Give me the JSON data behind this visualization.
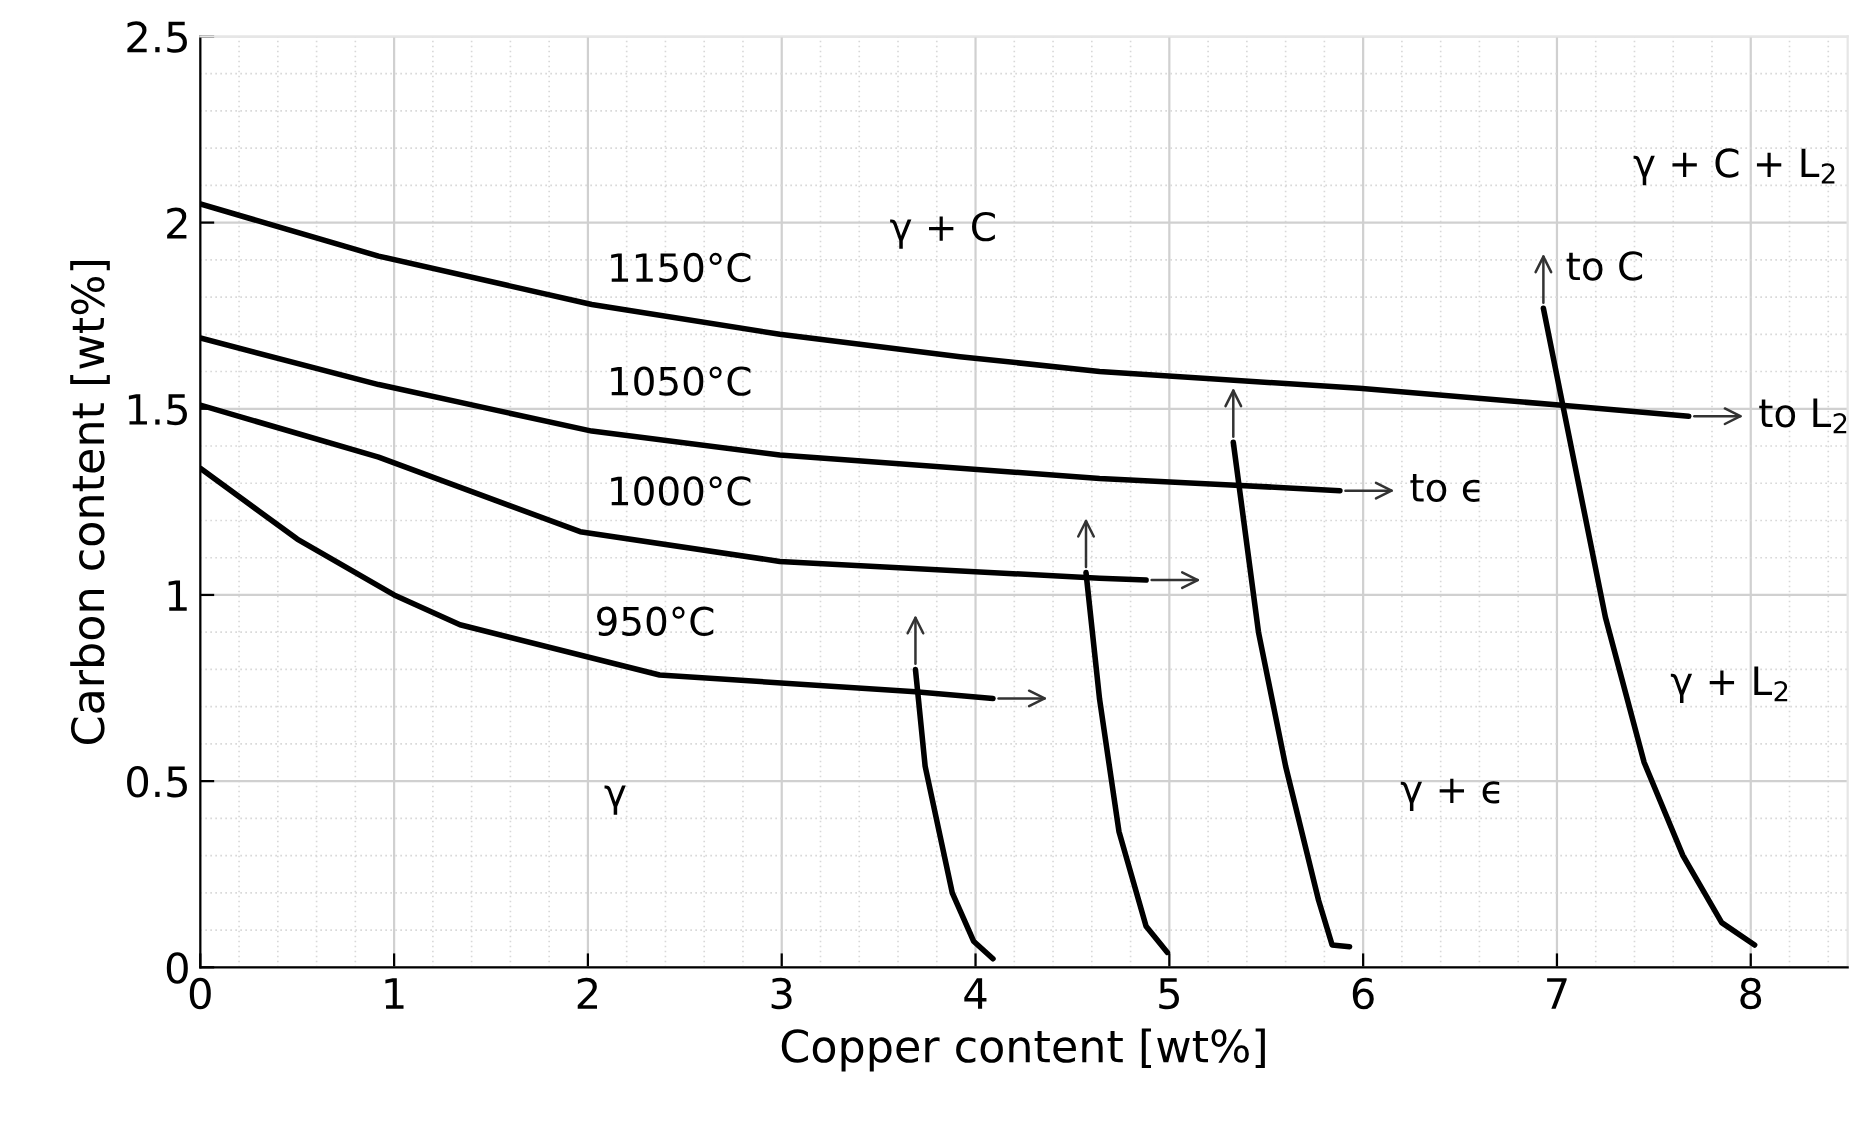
{
  "chart_data": {
    "type": "line",
    "xlabel": "Copper content [wt%]",
    "ylabel": "Carbon content [wt%]",
    "xlim": [
      0,
      8.5
    ],
    "ylim": [
      0,
      2.5
    ],
    "xticks": [
      0,
      1,
      2,
      3,
      4,
      5,
      6,
      7,
      8
    ],
    "yticks": [
      0,
      0.5,
      1,
      1.5,
      2,
      2.5
    ],
    "grid": true,
    "marker": "none",
    "line_style": "solid",
    "series": [
      {
        "color": "#000000",
        "x": [
          0,
          0.92,
          2.02,
          2.99,
          3.92,
          4.64,
          5.98,
          7.01,
          7.68
        ],
        "values": [
          2.05,
          1.91,
          1.78,
          1.7,
          1.64,
          1.6,
          1.555,
          1.51,
          1.48
        ]
      },
      {
        "color": "#000000",
        "x": [
          0,
          0.92,
          2.02,
          2.99,
          4.64,
          5.29,
          5.88
        ],
        "values": [
          1.69,
          1.565,
          1.44,
          1.376,
          1.313,
          1.296,
          1.28
        ]
      },
      {
        "color": "#000000",
        "x": [
          0,
          0.92,
          1.96,
          2.99,
          4.64,
          4.88
        ],
        "values": [
          1.51,
          1.37,
          1.17,
          1.09,
          1.045,
          1.04
        ]
      },
      {
        "color": "#000000",
        "x": [
          0,
          0.5,
          1.0,
          1.34,
          2.37,
          3.69,
          4.09
        ],
        "values": [
          1.34,
          1.15,
          1.0,
          0.92,
          0.785,
          0.74,
          0.722
        ]
      },
      {
        "color": "#000000",
        "x": [
          4.09,
          3.99,
          3.88,
          3.74,
          3.69
        ],
        "values": [
          0.023,
          0.07,
          0.2,
          0.54,
          0.8
        ]
      },
      {
        "color": "#000000",
        "x": [
          4.99,
          4.88,
          4.74,
          4.64,
          4.57
        ],
        "values": [
          0.04,
          0.11,
          0.365,
          0.72,
          1.06
        ]
      },
      {
        "color": "#000000",
        "x": [
          5.93,
          5.84,
          5.77,
          5.6,
          5.46,
          5.33
        ],
        "values": [
          0.055,
          0.06,
          0.18,
          0.54,
          0.9,
          1.41
        ]
      },
      {
        "color": "#000000",
        "x": [
          8.02,
          7.85,
          7.65,
          7.45,
          7.25,
          7.03,
          6.93
        ],
        "values": [
          0.06,
          0.12,
          0.3,
          0.55,
          0.94,
          1.51,
          1.77
        ]
      }
    ],
    "annotations": [
      "1150°C",
      "1050°C",
      "1000°C",
      "950°C",
      "γ + C",
      "γ + C + L$_{2}$",
      {
        "text": "to C",
        "x": 6.93,
        "y": 1.77
      },
      {
        "text": "to L$_{2}$",
        "x": 7.68,
        "y": 1.48
      },
      {
        "text": "to ϵ",
        "x": 5.88,
        "y": 1.28
      },
      "γ + ϵ",
      "γ + L$_{2}$",
      "γ"
    ]
  }
}
